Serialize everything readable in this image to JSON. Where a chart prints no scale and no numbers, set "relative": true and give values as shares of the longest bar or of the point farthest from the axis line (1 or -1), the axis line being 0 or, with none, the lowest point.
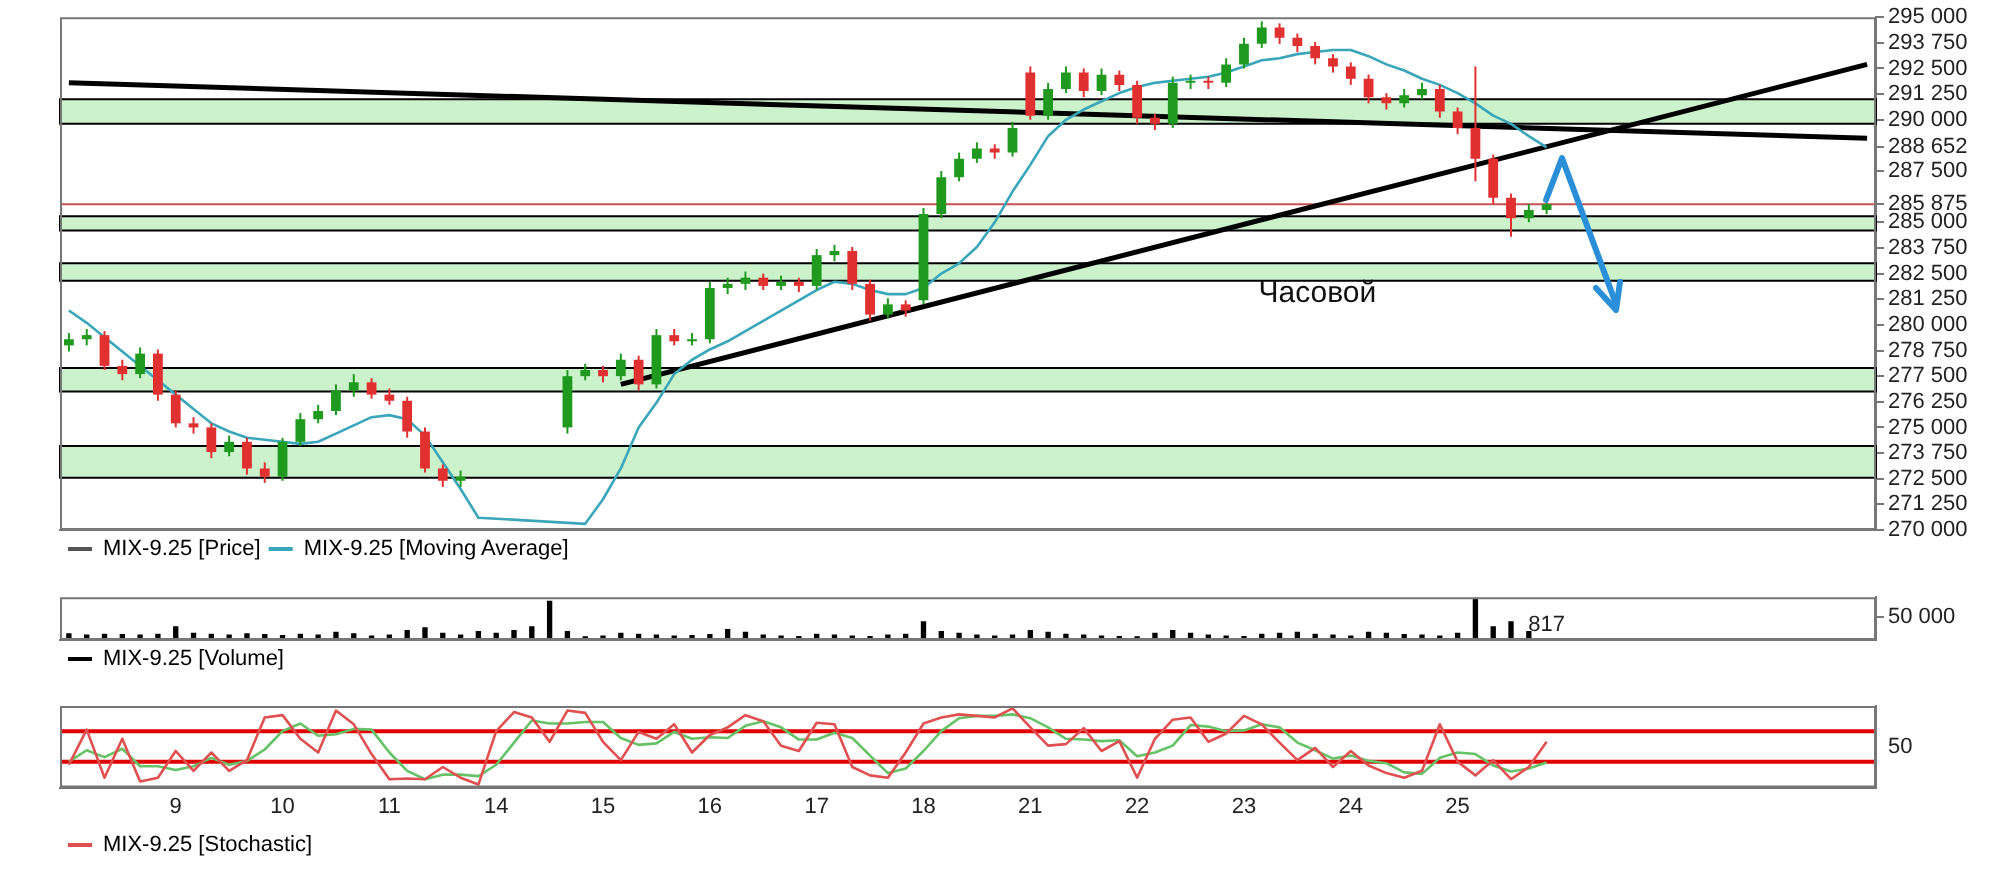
{
  "chart_data": [
    {
      "type": "candlestick",
      "categories": [
        null,
        null,
        null,
        null,
        null,
        null,
        "9",
        null,
        null,
        null,
        null,
        null,
        "10",
        null,
        null,
        null,
        null,
        null,
        "11",
        null,
        null,
        null,
        null,
        null,
        "14",
        null,
        null,
        null,
        null,
        null,
        "15",
        null,
        null,
        null,
        null,
        null,
        "16",
        null,
        null,
        null,
        null,
        null,
        "17",
        null,
        null,
        null,
        null,
        null,
        "18",
        null,
        null,
        null,
        null,
        null,
        "21",
        null,
        null,
        null,
        null,
        null,
        "22",
        null,
        null,
        null,
        null,
        null,
        "23",
        null,
        null,
        null,
        null,
        null,
        "24",
        null,
        null,
        null,
        null,
        null,
        "25",
        null,
        null,
        null,
        null,
        null,
        null,
        null,
        null,
        null,
        null,
        null,
        null,
        null,
        null,
        null,
        null,
        null,
        null,
        null,
        null,
        null,
        null,
        null
      ],
      "series": [
        {
          "name": "MIX-9.25 [Price]",
          "type": "candlestick",
          "color": "#555555",
          "ohlc": [
            [
              279000,
              279600,
              278700,
              279300
            ],
            [
              279300,
              279800,
              279000,
              279500
            ],
            [
              279500,
              279700,
              277800,
              278000
            ],
            [
              278000,
              278300,
              277300,
              277600
            ],
            [
              277600,
              278900,
              277400,
              278600
            ],
            [
              278600,
              278800,
              276300,
              276600
            ],
            [
              276600,
              276800,
              275000,
              275200
            ],
            [
              275200,
              275500,
              274700,
              275000
            ],
            [
              275000,
              275200,
              273500,
              273800
            ],
            [
              273800,
              274600,
              273600,
              274300
            ],
            [
              274300,
              274500,
              272700,
              273000
            ],
            [
              273000,
              273300,
              272300,
              272600
            ],
            [
              272600,
              274500,
              272400,
              274300
            ],
            [
              274300,
              275700,
              274100,
              275400
            ],
            [
              275400,
              276100,
              275200,
              275800
            ],
            [
              275800,
              277100,
              275600,
              276800
            ],
            [
              276800,
              277600,
              276500,
              277200
            ],
            [
              277200,
              277400,
              276400,
              276600
            ],
            [
              276600,
              276900,
              276100,
              276300
            ],
            [
              276300,
              276500,
              274500,
              274800
            ],
            [
              274800,
              275000,
              272800,
              273000
            ],
            [
              273000,
              273200,
              272100,
              272400
            ],
            [
              272400,
              272900,
              272100,
              272600
            ],
            null,
            null,
            null,
            null,
            null,
            [
              275000,
              277800,
              274700,
              277500
            ],
            [
              277500,
              278100,
              277300,
              277800
            ],
            [
              277800,
              278000,
              277200,
              277500
            ],
            [
              277500,
              278600,
              277300,
              278300
            ],
            [
              278300,
              278500,
              276800,
              277100
            ],
            [
              277100,
              279800,
              276900,
              279500
            ],
            [
              279500,
              279800,
              279000,
              279200
            ],
            [
              279200,
              279600,
              279000,
              279300
            ],
            [
              279300,
              282100,
              279100,
              281800
            ],
            [
              281800,
              282300,
              281500,
              282000
            ],
            [
              282000,
              282600,
              281700,
              282300
            ],
            [
              282300,
              282500,
              281700,
              281900
            ],
            [
              281900,
              282400,
              281700,
              282100
            ],
            [
              282100,
              282300,
              281600,
              281900
            ],
            [
              281900,
              283700,
              281700,
              283400
            ],
            [
              283400,
              283900,
              283100,
              283600
            ],
            [
              283600,
              283800,
              281700,
              282000
            ],
            [
              282000,
              282200,
              280200,
              280500
            ],
            [
              280500,
              281300,
              280300,
              281000
            ],
            [
              281000,
              281200,
              280400,
              280700
            ],
            [
              281200,
              285700,
              281000,
              285400
            ],
            [
              285400,
              287500,
              285200,
              287200
            ],
            [
              287200,
              288400,
              287000,
              288100
            ],
            [
              288100,
              288900,
              287900,
              288600
            ],
            [
              288600,
              288800,
              288100,
              288400
            ],
            [
              288400,
              289900,
              288200,
              289600
            ],
            [
              292300,
              292600,
              290000,
              290200
            ],
            [
              290200,
              291800,
              290000,
              291500
            ],
            [
              291500,
              292600,
              291300,
              292300
            ],
            [
              292300,
              292500,
              291100,
              291400
            ],
            [
              291400,
              292500,
              291200,
              292200
            ],
            [
              292200,
              292400,
              291400,
              291700
            ],
            [
              291700,
              291900,
              289800,
              290100
            ],
            [
              290100,
              290300,
              289500,
              289800
            ],
            [
              289800,
              292100,
              289600,
              291800
            ],
            [
              291800,
              292200,
              291500,
              291900
            ],
            [
              291900,
              292100,
              291500,
              291800
            ],
            [
              291800,
              293000,
              291600,
              292700
            ],
            [
              292700,
              294000,
              292500,
              293700
            ],
            [
              293700,
              294800,
              293500,
              294500
            ],
            [
              294500,
              294700,
              293700,
              294000
            ],
            [
              294000,
              294200,
              293300,
              293600
            ],
            [
              293600,
              293800,
              292700,
              293000
            ],
            [
              293000,
              293200,
              292300,
              292600
            ],
            [
              292600,
              292800,
              291700,
              292000
            ],
            [
              292000,
              292200,
              290800,
              291100
            ],
            [
              291100,
              291300,
              290500,
              290800
            ],
            [
              290800,
              291500,
              290600,
              291200
            ],
            [
              291200,
              291800,
              291000,
              291500
            ],
            [
              291500,
              291700,
              290100,
              290400
            ],
            [
              290400,
              290600,
              289300,
              289600
            ],
            [
              289600,
              292600,
              287000,
              288100
            ],
            [
              288100,
              288300,
              285900,
              286200
            ],
            [
              286200,
              286400,
              284300,
              285200
            ],
            [
              285200,
              285900,
              285000,
              285600
            ],
            [
              285600,
              286100,
              285400,
              285875
            ],
            null,
            null,
            null,
            null,
            null,
            null,
            null,
            null,
            null,
            null,
            null,
            null,
            null,
            null,
            null,
            null,
            null,
            null
          ],
          "colors": [
            "#1f9a1f",
            "#1f9a1f",
            "#e03030",
            "#e03030",
            "#1f9a1f",
            "#e03030",
            "#e03030",
            "#e03030",
            "#e03030",
            "#1f9a1f",
            "#e03030",
            "#e03030",
            "#1f9a1f",
            "#1f9a1f",
            "#1f9a1f",
            "#1f9a1f",
            "#1f9a1f",
            "#e03030",
            "#e03030",
            "#e03030",
            "#e03030",
            "#e03030",
            "#1f9a1f",
            null,
            null,
            null,
            null,
            null,
            "#1f9a1f",
            "#1f9a1f",
            "#e03030",
            "#1f9a1f",
            "#e03030",
            "#1f9a1f",
            "#e03030",
            "#1f9a1f",
            "#1f9a1f",
            "#1f9a1f",
            "#1f9a1f",
            "#e03030",
            "#1f9a1f",
            "#e03030",
            "#1f9a1f",
            "#1f9a1f",
            "#e03030",
            "#e03030",
            "#1f9a1f",
            "#e03030",
            "#1f9a1f",
            "#1f9a1f",
            "#1f9a1f",
            "#1f9a1f",
            "#e03030",
            "#1f9a1f",
            "#e03030",
            "#1f9a1f",
            "#1f9a1f",
            "#e03030",
            "#1f9a1f",
            "#e03030",
            "#e03030",
            "#e03030",
            "#1f9a1f",
            "#1f9a1f",
            "#e03030",
            "#1f9a1f",
            "#1f9a1f",
            "#1f9a1f",
            "#e03030",
            "#e03030",
            "#e03030",
            "#e03030",
            "#e03030",
            "#e03030",
            "#e03030",
            "#1f9a1f",
            "#1f9a1f",
            "#e03030",
            "#e03030",
            "#e03030",
            "#e03030",
            "#e03030",
            "#1f9a1f",
            "#1f9a1f",
            null,
            null,
            null,
            null,
            null,
            null,
            null,
            null,
            null,
            null,
            null,
            null,
            null,
            null,
            null,
            null,
            null,
            null
          ]
        },
        {
          "name": "MIX-9.25 [Moving Average]",
          "type": "line",
          "color": "#3aa6b9",
          "values": [
            280700,
            280100,
            279400,
            278700,
            278000,
            277300,
            276600,
            275900,
            275200,
            274800,
            274500,
            274400,
            274300,
            274200,
            274300,
            274700,
            275100,
            275500,
            275600,
            275400,
            274600,
            273300,
            272000,
            270600,
            null,
            null,
            null,
            null,
            null,
            270300,
            271500,
            273000,
            275000,
            276200,
            277600,
            278300,
            278800,
            279200,
            279700,
            280200,
            280700,
            281200,
            281700,
            282100,
            282000,
            281700,
            281500,
            281500,
            281800,
            282500,
            283000,
            283800,
            285000,
            286500,
            287800,
            289200,
            290000,
            290500,
            290900,
            291300,
            291600,
            291800,
            291900,
            292000,
            292100,
            292300,
            292600,
            292900,
            293000,
            293200,
            293300,
            293400,
            293400,
            293100,
            292700,
            292400,
            292000,
            291700,
            291300,
            290800,
            290200,
            289800,
            289200,
            288652,
            null,
            null,
            null,
            null,
            null,
            null,
            null,
            null,
            null,
            null,
            null,
            null,
            null,
            null,
            null,
            null,
            null,
            null
          ]
        },
        {
          "type": "line",
          "color": "#000000",
          "values": [
            291800,
            null,
            null,
            null,
            null,
            null,
            null,
            null,
            null,
            null,
            null,
            null,
            null,
            null,
            null,
            null,
            null,
            null,
            null,
            null,
            null,
            null,
            null,
            null,
            null,
            null,
            null,
            null,
            null,
            null,
            null,
            null,
            null,
            null,
            null,
            null,
            null,
            null,
            null,
            null,
            null,
            null,
            null,
            null,
            null,
            null,
            null,
            null,
            null,
            null,
            null,
            null,
            null,
            null,
            null,
            null,
            null,
            null,
            null,
            null,
            null,
            null,
            null,
            null,
            null,
            null,
            null,
            null,
            null,
            null,
            null,
            null,
            null,
            null,
            null,
            null,
            null,
            null,
            null,
            null,
            null,
            null,
            null,
            null,
            null,
            null,
            null,
            null,
            null,
            null,
            null,
            null,
            null,
            null,
            null,
            null,
            null,
            null,
            null,
            null,
            null,
            289100
          ]
        },
        {
          "type": "line",
          "color": "#000000",
          "values": [
            null,
            null,
            null,
            null,
            null,
            null,
            null,
            null,
            null,
            null,
            null,
            null,
            null,
            null,
            null,
            null,
            null,
            null,
            null,
            null,
            null,
            null,
            null,
            null,
            null,
            null,
            null,
            null,
            null,
            null,
            null,
            277100,
            null,
            null,
            null,
            null,
            null,
            null,
            null,
            null,
            null,
            null,
            null,
            null,
            null,
            null,
            null,
            null,
            null,
            null,
            null,
            null,
            null,
            null,
            null,
            null,
            null,
            null,
            null,
            null,
            null,
            null,
            null,
            null,
            null,
            null,
            null,
            null,
            null,
            null,
            null,
            null,
            null,
            null,
            null,
            null,
            null,
            null,
            null,
            null,
            null,
            null,
            null,
            null,
            null,
            null,
            null,
            null,
            null,
            null,
            null,
            null,
            null,
            null,
            null,
            null,
            null,
            null,
            null,
            null,
            null,
            292700
          ]
        }
      ],
      "ylim": [
        270000,
        295000
      ],
      "yticks": [
        {
          "value": 270000,
          "label": "270 000"
        },
        {
          "value": 271250,
          "label": "271 250"
        },
        {
          "value": 272500,
          "label": "272 500"
        },
        {
          "value": 273750,
          "label": "273 750"
        },
        {
          "value": 275000,
          "label": "275 000"
        },
        {
          "value": 276250,
          "label": "276 250"
        },
        {
          "value": 277500,
          "label": "277 500"
        },
        {
          "value": 278750,
          "label": "278 750"
        },
        {
          "value": 280000,
          "label": "280 000"
        },
        {
          "value": 281250,
          "label": "281 250"
        },
        {
          "value": 282500,
          "label": "282 500"
        },
        {
          "value": 283750,
          "label": "283 750"
        },
        {
          "value": 285000,
          "label": "285 000"
        },
        {
          "value": 285875,
          "label": "285 875"
        },
        {
          "value": 287500,
          "label": "287 500"
        },
        {
          "value": 288652,
          "label": "288 652"
        },
        {
          "value": 290000,
          "label": "290 000"
        },
        {
          "value": 291250,
          "label": "291 250"
        },
        {
          "value": 292500,
          "label": "292 500"
        },
        {
          "value": 293750,
          "label": "293 750"
        },
        {
          "value": 295000,
          "label": "295 000"
        }
      ],
      "bands": [
        {
          "axis": "y",
          "from": 289800,
          "to": 291000,
          "color": "#ccf2cc"
        },
        {
          "axis": "y",
          "from": 284600,
          "to": 285300,
          "color": "#ccf2cc"
        },
        {
          "axis": "y",
          "from": 282150,
          "to": 283000,
          "color": "#ccf2cc"
        },
        {
          "axis": "y",
          "from": 276750,
          "to": 277900,
          "color": "#ccf2cc"
        },
        {
          "axis": "y",
          "from": 272550,
          "to": 274100,
          "color": "#ccf2cc"
        }
      ],
      "ref_lines": [
        {
          "axis": "y",
          "value": 285875,
          "color": "#c85050"
        }
      ],
      "annotations": [
        "Часовой"
      ],
      "legend": "bottom",
      "tick_labels": "y"
    },
    {
      "type": "bar",
      "categories": [
        null,
        null,
        null,
        null,
        null,
        null,
        "9",
        null,
        null,
        null,
        null,
        null,
        "10",
        null,
        null,
        null,
        null,
        null,
        "11",
        null,
        null,
        null,
        null,
        null,
        "14",
        null,
        null,
        null,
        null,
        null,
        "15",
        null,
        null,
        null,
        null,
        null,
        "16",
        null,
        null,
        null,
        null,
        null,
        "17",
        null,
        null,
        null,
        null,
        null,
        "18",
        null,
        null,
        null,
        null,
        null,
        "21",
        null,
        null,
        null,
        null,
        null,
        "22",
        null,
        null,
        null,
        null,
        null,
        "23",
        null,
        null,
        null,
        null,
        null,
        "24",
        null,
        null,
        null,
        null,
        null,
        "25",
        null,
        null,
        null,
        null,
        null,
        null,
        null,
        null,
        null,
        null,
        null,
        null,
        null,
        null,
        null,
        null,
        null,
        null,
        null,
        null,
        null,
        null,
        null
      ],
      "series": [
        {
          "name": "MIX-9.25 [Volume]",
          "color": "#000000",
          "values": [
            15000,
            12000,
            14000,
            13000,
            12000,
            14000,
            30000,
            16000,
            14000,
            12000,
            15000,
            13000,
            11000,
            14000,
            12000,
            18000,
            15000,
            10000,
            12000,
            22000,
            28000,
            16000,
            12000,
            20000,
            16000,
            22000,
            30000,
            86000,
            20000,
            8000,
            10000,
            16000,
            14000,
            12000,
            10000,
            11000,
            13000,
            24000,
            18000,
            12000,
            10000,
            9000,
            14000,
            12000,
            10000,
            9000,
            12000,
            14000,
            41000,
            20000,
            16000,
            12000,
            10000,
            12000,
            22000,
            18000,
            14000,
            12000,
            10000,
            9000,
            8000,
            16000,
            22000,
            16000,
            12000,
            10000,
            9000,
            14000,
            16000,
            18000,
            14000,
            12000,
            10000,
            18000,
            16000,
            13000,
            12000,
            10000,
            16000,
            93000,
            30000,
            41000,
            20000,
            817,
            null,
            null,
            null,
            null,
            null,
            null,
            null,
            null,
            null,
            null,
            null,
            null,
            null,
            null,
            null,
            null,
            null,
            null
          ],
          "value_labels": [
            null,
            null,
            null,
            null,
            null,
            null,
            null,
            null,
            null,
            null,
            null,
            null,
            null,
            null,
            null,
            null,
            null,
            null,
            null,
            null,
            null,
            null,
            null,
            null,
            null,
            null,
            null,
            null,
            null,
            null,
            null,
            null,
            null,
            null,
            null,
            null,
            null,
            null,
            null,
            null,
            null,
            null,
            null,
            null,
            null,
            null,
            null,
            null,
            null,
            null,
            null,
            null,
            null,
            null,
            null,
            null,
            null,
            null,
            null,
            null,
            null,
            null,
            null,
            null,
            null,
            null,
            null,
            null,
            null,
            null,
            null,
            null,
            null,
            null,
            null,
            null,
            null,
            null,
            null,
            null,
            null,
            null,
            null,
            "817",
            null,
            null,
            null,
            null,
            null,
            null,
            null,
            null,
            null,
            null,
            null,
            null,
            null,
            null,
            null,
            null,
            null,
            null
          ]
        }
      ],
      "ylim": [
        0,
        94000
      ],
      "yticks": [
        {
          "value": 50000,
          "label": "50 000"
        }
      ],
      "legend": "bottom",
      "tick_labels": "y"
    },
    {
      "type": "line",
      "relative": true,
      "categories": [
        null,
        null,
        null,
        null,
        null,
        null,
        "9",
        null,
        null,
        null,
        null,
        null,
        "10",
        null,
        null,
        null,
        null,
        null,
        "11",
        null,
        null,
        null,
        null,
        null,
        "14",
        null,
        null,
        null,
        null,
        null,
        "15",
        null,
        null,
        null,
        null,
        null,
        "16",
        null,
        null,
        null,
        null,
        null,
        "17",
        null,
        null,
        null,
        null,
        null,
        "18",
        null,
        null,
        null,
        null,
        null,
        "21",
        null,
        null,
        null,
        null,
        null,
        "22",
        null,
        null,
        null,
        null,
        null,
        "23",
        null,
        null,
        null,
        null,
        null,
        "24",
        null,
        null,
        null,
        null,
        null,
        "25",
        null,
        null,
        null,
        null,
        null,
        null,
        null,
        null,
        null,
        null,
        null,
        null,
        null,
        null,
        null,
        null,
        null,
        null,
        null,
        null,
        null,
        null,
        null
      ],
      "series": [
        {
          "name": "MIX-9.25 [Stochastic]",
          "color": "#e05050",
          "values": [
            0.26,
            0.72,
            0.09,
            0.6,
            0.04,
            0.09,
            0.44,
            0.18,
            0.42,
            0.18,
            0.32,
            0.88,
            0.91,
            0.6,
            0.42,
            0.97,
            0.79,
            0.4,
            0.07,
            0.08,
            0.07,
            0.23,
            0.09,
            0,
            0.7,
            0.95,
            0.88,
            0.56,
            0.97,
            0.94,
            0.56,
            0.32,
            0.69,
            0.6,
            0.79,
            0.42,
            0.65,
            0.75,
            0.91,
            0.83,
            0.51,
            0.44,
            0.81,
            0.79,
            0.23,
            0.12,
            0.09,
            0.42,
            0.8,
            0.88,
            0.92,
            0.9,
            0.88,
            1,
            0.75,
            0.51,
            0.53,
            0.74,
            0.44,
            0.57,
            0.09,
            0.6,
            0.85,
            0.88,
            0.56,
            0.67,
            0.9,
            0.79,
            0.55,
            0.32,
            0.48,
            0.23,
            0.44,
            0.25,
            0.15,
            0.09,
            0.18,
            0.79,
            0.3,
            0.12,
            0.32,
            0.07,
            0.23,
            0.56,
            null,
            null,
            null,
            null,
            null,
            null,
            null,
            null,
            null,
            null,
            null,
            null,
            null,
            null,
            null,
            null,
            null,
            null
          ]
        },
        {
          "color": "#66c266",
          "values": [
            0.3,
            0.45,
            0.36,
            0.47,
            0.24,
            0.24,
            0.19,
            0.24,
            0.35,
            0.26,
            0.31,
            0.46,
            0.7,
            0.8,
            0.64,
            0.66,
            0.73,
            0.72,
            0.42,
            0.18,
            0.07,
            0.13,
            0.13,
            0.11,
            0.26,
            0.55,
            0.84,
            0.8,
            0.8,
            0.82,
            0.82,
            0.61,
            0.52,
            0.54,
            0.69,
            0.6,
            0.62,
            0.61,
            0.77,
            0.83,
            0.75,
            0.59,
            0.59,
            0.68,
            0.61,
            0.38,
            0.15,
            0.21,
            0.44,
            0.7,
            0.87,
            0.9,
            0.9,
            0.92,
            0.87,
            0.75,
            0.6,
            0.59,
            0.57,
            0.58,
            0.37,
            0.42,
            0.51,
            0.78,
            0.76,
            0.7,
            0.71,
            0.79,
            0.75,
            0.55,
            0.45,
            0.34,
            0.38,
            0.31,
            0.28,
            0.16,
            0.14,
            0.35,
            0.42,
            0.4,
            0.25,
            0.17,
            0.21,
            0.29,
            null,
            null,
            null,
            null,
            null,
            null,
            null,
            null,
            null,
            null,
            null,
            null,
            null,
            null,
            null,
            null,
            null,
            null
          ]
        }
      ],
      "ref_lines": [
        {
          "axis": "y",
          "value": 0.7,
          "color": "#e00000"
        },
        {
          "axis": "y",
          "value": 0.3,
          "color": "#e00000"
        }
      ],
      "annotations": [
        "50"
      ],
      "legend": "bottom"
    }
  ]
}
